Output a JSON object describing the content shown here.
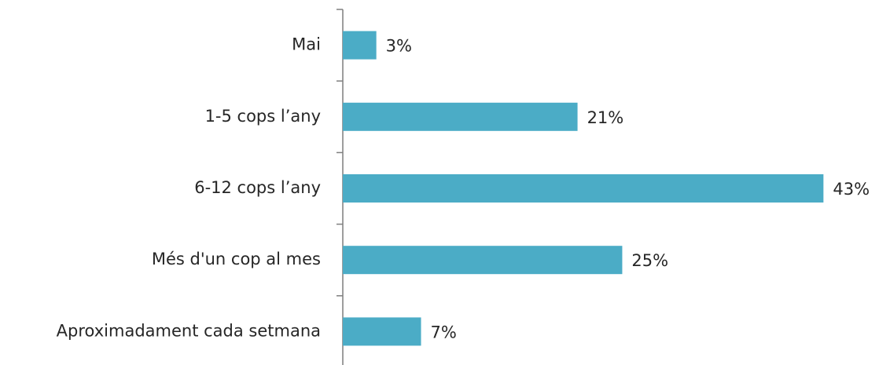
{
  "chart_data": {
    "type": "bar",
    "orientation": "horizontal",
    "categories": [
      "Mai",
      "1-5 cops l’any",
      "6-12 cops l’any",
      "Més d'un cop al mes",
      "Aproximadament cada setmana"
    ],
    "values": [
      3,
      21,
      43,
      25,
      7
    ],
    "value_labels": [
      "3%",
      "21%",
      "43%",
      "25%",
      "7%"
    ],
    "color": "#4bacc6",
    "xlim": [
      0,
      46
    ]
  }
}
